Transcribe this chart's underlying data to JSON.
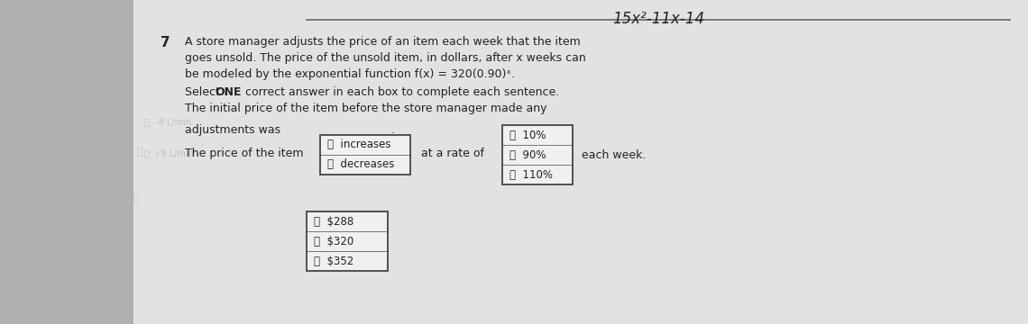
{
  "bg_color": "#c8c8c8",
  "paper_color": "#e2e2e0",
  "top_formula": "15x²-11x-14",
  "question_number": "7",
  "line1": "A store manager adjusts the price of an item each week that the item",
  "line2": "goes unsold. The price of the unsold item, in dollars, after x weeks can",
  "line3": "be modeled by the exponential function f(x) = 320(0.90)ˣ.",
  "instruction_pre": "Select ",
  "instruction_bold": "ONE",
  "instruction_post": " correct answer in each box to complete each sentence.",
  "sentence1": "The initial price of the item before the store manager made any",
  "sentence1b": "adjustments was",
  "dot_after_box1": ".",
  "box1_A": "Ⓐ  $288",
  "box1_B": "Ⓑ  $320",
  "box1_C": "Ⓜ  $352",
  "sentence2_pre": "The price of the item",
  "box2_A": "Ⓐ  increases",
  "box2_B": "Ⓑ  decreases",
  "sentence2_mid": "at a rate of",
  "box3_A": "Ⓐ  10%",
  "box3_B": "Ⓑ  90%",
  "box3_C": "Ⓜ  110%",
  "sentence2_end": "each week.",
  "text_color": "#222222",
  "box_edge_color": "#444444",
  "box_fill": "#f0f0ee",
  "left_margin_color": "#b0b0ae",
  "faint_text_color": "#aaaaaa"
}
